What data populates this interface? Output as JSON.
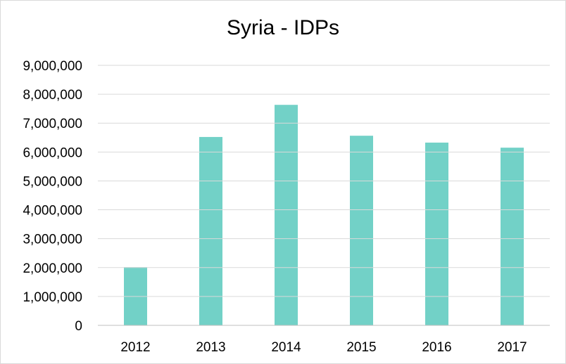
{
  "chart_data": {
    "type": "bar",
    "title": "Syria - IDPs",
    "xlabel": "",
    "ylabel": "",
    "categories": [
      "2012",
      "2013",
      "2014",
      "2015",
      "2016",
      "2017"
    ],
    "values": [
      2016500,
      6520800,
      7632500,
      6563500,
      6325978,
      6150005
    ],
    "ylim": [
      0,
      9000000
    ],
    "yticks": [
      "0",
      "1,000,000",
      "2,000,000",
      "3,000,000",
      "4,000,000",
      "5,000,000",
      "6,000,000",
      "7,000,000",
      "8,000,000",
      "9,000,000"
    ],
    "grid": true,
    "legend": "none",
    "bar_color": "#72d1c7",
    "grid_color": "#d9d9d9"
  }
}
